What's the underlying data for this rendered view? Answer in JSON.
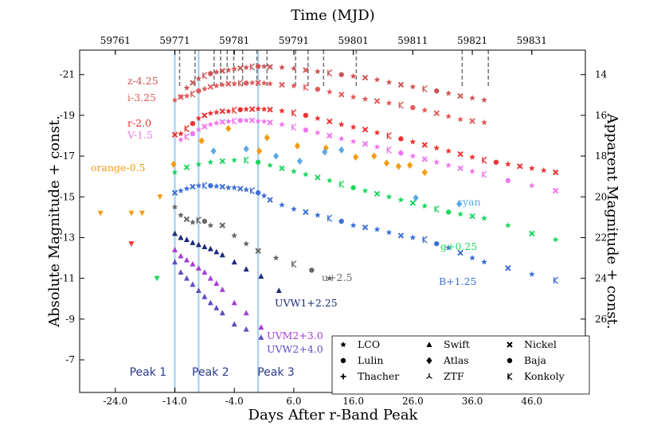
{
  "chart_data": {
    "type": "scatter",
    "title": "",
    "xlabel": "Days After r-Band Peak",
    "ylabel_left": "Absolute Magnitude + const.",
    "ylabel_right": "Apparent Magnitude + const.",
    "top_xlabel": "Time (MJD)",
    "xlim": [
      -30,
      55
    ],
    "ylim": [
      -22.2,
      -5.4
    ],
    "x_ticks": [
      "-24.0",
      "-14.0",
      "-4.0",
      "6.0",
      "16.0",
      "26.0",
      "36.0",
      "46.0"
    ],
    "y_ticks_left": [
      "-21",
      "-19",
      "-17",
      "-15",
      "-13",
      "-11",
      "-9",
      "-7"
    ],
    "y_ticks_right": [
      "14",
      "16",
      "18",
      "20",
      "22",
      "24",
      "26"
    ],
    "top_ticks": [
      "59761",
      "59771",
      "59781",
      "59791",
      "59801",
      "59811",
      "59821",
      "59831"
    ],
    "mjd_at_peak": 59785,
    "right_offset": 35,
    "peaks": [
      {
        "label": "Peak 1",
        "x": -14.0
      },
      {
        "label": "Peak 2",
        "x": -10.0
      },
      {
        "label": "Peak 3",
        "x": 0.0
      }
    ],
    "spectra_epochs": [
      -13.2,
      -10.6,
      -7.4,
      -6.3,
      -5.2,
      -4.1,
      -2.6,
      -0.2,
      1.5,
      6.3,
      8.4,
      11.0,
      16.5,
      34.3,
      38.7
    ],
    "series": [
      {
        "name": "z-4.25",
        "color": "#cc5555",
        "x": [
          -13,
          -12,
          -11,
          -10,
          -9,
          -8,
          -7,
          -6,
          -5,
          -4,
          -3,
          -2,
          -1,
          0,
          1,
          2,
          4,
          6,
          8,
          10,
          12,
          14,
          16,
          18,
          20,
          22,
          24,
          26,
          28,
          30,
          32,
          34,
          36,
          38
        ],
        "y": [
          -19.9,
          -20.35,
          -20.6,
          -20.8,
          -20.95,
          -21.05,
          -21.12,
          -21.18,
          -21.22,
          -21.28,
          -21.32,
          -21.35,
          -21.38,
          -21.4,
          -21.4,
          -21.38,
          -21.35,
          -21.3,
          -21.22,
          -21.15,
          -21.08,
          -21.0,
          -20.92,
          -20.85,
          -20.75,
          -20.62,
          -20.5,
          -20.4,
          -20.3,
          -20.2,
          -20.08,
          -19.95,
          -19.85,
          -19.75
        ]
      },
      {
        "name": "i-3.25",
        "color": "#e15a5a",
        "x": [
          -14,
          -13,
          -12,
          -11,
          -10,
          -9,
          -8,
          -7,
          -6,
          -5,
          -4,
          -3,
          -2,
          -1,
          0,
          1,
          2,
          4,
          6,
          8,
          10,
          12,
          14,
          16,
          18,
          20,
          22,
          24,
          26,
          28,
          30,
          32,
          34,
          36,
          38
        ],
        "y": [
          -19.75,
          -19.9,
          -19.95,
          -20.05,
          -20.2,
          -20.3,
          -20.4,
          -20.45,
          -20.5,
          -20.55,
          -20.55,
          -20.58,
          -20.58,
          -20.6,
          -20.6,
          -20.58,
          -20.55,
          -20.5,
          -20.45,
          -20.38,
          -20.28,
          -20.15,
          -20.02,
          -19.9,
          -19.8,
          -19.7,
          -19.6,
          -19.5,
          -19.38,
          -19.25,
          -19.1,
          -18.95,
          -18.8,
          -18.72,
          -18.65
        ]
      },
      {
        "name": "r-2.0",
        "color": "#ee3333",
        "x": [
          -14,
          -13,
          -12,
          -11,
          -10,
          -9,
          -8,
          -7,
          -6,
          -5,
          -4,
          -3,
          -2,
          -1,
          0,
          1,
          2,
          4,
          6,
          8,
          10,
          12,
          14,
          16,
          18,
          20,
          22,
          24,
          26,
          28,
          30,
          32,
          34,
          36,
          38,
          40,
          42,
          44,
          46,
          48,
          50
        ],
        "y": [
          -18.05,
          -18.1,
          -18.35,
          -18.6,
          -18.85,
          -19.0,
          -19.1,
          -19.15,
          -19.2,
          -19.2,
          -19.25,
          -19.28,
          -19.3,
          -19.3,
          -19.32,
          -19.3,
          -19.28,
          -19.22,
          -19.12,
          -19.0,
          -18.85,
          -18.7,
          -18.55,
          -18.42,
          -18.3,
          -18.15,
          -18.0,
          -17.85,
          -17.7,
          -17.55,
          -17.4,
          -17.25,
          -17.1,
          -16.95,
          -16.8,
          -16.7,
          -16.6,
          -16.5,
          -16.4,
          -16.3,
          -16.2
        ]
      },
      {
        "name": "V-1.5",
        "color": "#ee77ee",
        "x": [
          -13,
          -12,
          -11,
          -10,
          -9,
          -8,
          -7,
          -6,
          -5,
          -4,
          -3,
          -2,
          -1,
          0,
          1,
          2,
          4,
          6,
          8,
          10,
          12,
          14,
          16,
          18,
          20,
          22,
          24,
          26,
          28,
          30,
          32,
          34,
          36,
          38,
          42,
          46,
          50
        ],
        "y": [
          -17.8,
          -17.95,
          -18.1,
          -18.3,
          -18.45,
          -18.55,
          -18.62,
          -18.68,
          -18.7,
          -18.72,
          -18.75,
          -18.75,
          -18.75,
          -18.72,
          -18.7,
          -18.65,
          -18.55,
          -18.42,
          -18.28,
          -18.15,
          -18.0,
          -17.85,
          -17.72,
          -17.6,
          -17.45,
          -17.3,
          -17.15,
          -17.0,
          -16.85,
          -16.7,
          -16.55,
          -16.4,
          -16.25,
          -16.1,
          -15.8,
          -15.55,
          -15.3
        ]
      },
      {
        "name": "orange-0.5",
        "color": "#f39c12",
        "x": [
          -14.2,
          -9.5,
          -5.0,
          0.2,
          1.5,
          6.6,
          11.4,
          16.4,
          19.5,
          21.6,
          23.6,
          25.5,
          28.0
        ],
        "y": [
          -16.6,
          -17.75,
          -18.35,
          -17.25,
          -17.9,
          -17.5,
          -17.4,
          -16.95,
          -17.0,
          -16.65,
          -16.5,
          -16.55,
          -16.2
        ]
      },
      {
        "name": "cyan",
        "color": "#5aa9e6",
        "x": [
          -7.5,
          -2.0,
          3.0,
          7.0,
          11.2,
          14.0,
          26.5,
          33.8
        ],
        "y": [
          -17.25,
          -17.35,
          -17.0,
          -16.75,
          -17.2,
          -17.3,
          -14.95,
          -14.65
        ]
      },
      {
        "name": "g+0.25",
        "color": "#1ed760",
        "x": [
          -14,
          -12,
          -10,
          -8,
          -6,
          -4,
          -2,
          0,
          2,
          4,
          6,
          8,
          10,
          12,
          14,
          16,
          18,
          20,
          22,
          24,
          26,
          28,
          30,
          32,
          34,
          36,
          38,
          42,
          46,
          50
        ],
        "y": [
          -16.2,
          -16.45,
          -16.6,
          -16.7,
          -16.75,
          -16.8,
          -16.8,
          -16.7,
          -16.55,
          -16.4,
          -16.25,
          -16.1,
          -15.95,
          -15.8,
          -15.62,
          -15.45,
          -15.3,
          -15.15,
          -15.0,
          -14.85,
          -14.7,
          -14.55,
          -14.4,
          -14.25,
          -14.15,
          -14.05,
          -13.95,
          -13.6,
          -13.2,
          -12.9
        ]
      },
      {
        "name": "B+1.25",
        "color": "#3e6fd8",
        "x": [
          -14,
          -13,
          -12,
          -11,
          -10,
          -9,
          -8,
          -7,
          -6,
          -5,
          -4,
          -3,
          -2,
          -1,
          0,
          1,
          2,
          4,
          6,
          8,
          10,
          12,
          14,
          16,
          18,
          20,
          22,
          24,
          26,
          28,
          30,
          32,
          34,
          36,
          38,
          42,
          46,
          50
        ],
        "y": [
          -15.2,
          -15.3,
          -15.4,
          -15.5,
          -15.55,
          -15.55,
          -15.55,
          -15.52,
          -15.5,
          -15.45,
          -15.45,
          -15.4,
          -15.35,
          -15.3,
          -15.2,
          -15.05,
          -14.85,
          -14.6,
          -14.4,
          -14.25,
          -14.1,
          -13.95,
          -13.8,
          -13.6,
          -13.5,
          -13.4,
          -13.25,
          -13.1,
          -13.0,
          -12.9,
          -12.7,
          -12.5,
          -12.25,
          -12.0,
          -11.8,
          -11.5,
          -11.2,
          -10.9
        ]
      },
      {
        "name": "u+2.5",
        "color": "#666666",
        "x": [
          -14,
          -13,
          -12,
          -11,
          -10,
          -9,
          -8,
          -6,
          -4,
          -2,
          0,
          3,
          6,
          9,
          12
        ],
        "y": [
          -14.5,
          -14.1,
          -13.9,
          -13.75,
          -13.85,
          -13.8,
          -13.6,
          -13.6,
          -13.1,
          -12.7,
          -12.35,
          -12.0,
          -11.7,
          -11.4,
          -11.0
        ]
      },
      {
        "name": "UVW1+2.25",
        "color": "#1d2b7a",
        "x": [
          -14,
          -13,
          -12,
          -11,
          -10,
          -9,
          -8,
          -7,
          -6,
          -4,
          -2,
          0.5,
          3.5
        ],
        "y": [
          -13.2,
          -13.0,
          -12.9,
          -12.75,
          -12.65,
          -12.55,
          -12.45,
          -12.3,
          -12.15,
          -11.8,
          -11.45,
          -11.1,
          -10.4
        ]
      },
      {
        "name": "UVM2+3.0",
        "color": "#a63cd6",
        "x": [
          -14,
          -13,
          -12,
          -11,
          -10,
          -9,
          -8,
          -7,
          -6,
          -4,
          -2,
          0.5
        ],
        "y": [
          -12.4,
          -12.1,
          -11.9,
          -11.7,
          -11.5,
          -11.3,
          -11.0,
          -10.75,
          -10.45,
          -9.8,
          -9.3,
          -8.6
        ]
      },
      {
        "name": "UVW2+4.0",
        "color": "#5a4fc2",
        "x": [
          -14,
          -13,
          -12,
          -11,
          -10,
          -9,
          -8,
          -7,
          -6,
          -4,
          -2,
          0.5
        ],
        "y": [
          -11.8,
          -11.3,
          -11.0,
          -10.7,
          -10.4,
          -10.1,
          -9.8,
          -9.55,
          -9.3,
          -8.75,
          -8.5,
          -8.1
        ]
      }
    ],
    "upper_limits": [
      {
        "color": "#f39c12",
        "x": [
          -26.5,
          -21.3,
          -19.5,
          -16.5
        ],
        "y": [
          -14.2,
          -14.2,
          -14.2,
          -15.0
        ]
      },
      {
        "color": "#ee3333",
        "x": [
          -21.3
        ],
        "y": [
          -12.7
        ]
      },
      {
        "color": "#1ed760",
        "x": [
          -17.0
        ],
        "y": [
          -11.0
        ]
      }
    ],
    "legend": [
      {
        "label": "LCO",
        "symbol": "star"
      },
      {
        "label": "Swift",
        "symbol": "triangle"
      },
      {
        "label": "Nickel",
        "symbol": "x"
      },
      {
        "label": "Lulin",
        "symbol": "circle"
      },
      {
        "label": "Atlas",
        "symbol": "diamond"
      },
      {
        "label": "Baja",
        "symbol": "circle"
      },
      {
        "label": "Thacher",
        "symbol": "plus"
      },
      {
        "label": "ZTF",
        "symbol": "tri"
      },
      {
        "label": "Konkoly",
        "symbol": "k"
      }
    ]
  }
}
